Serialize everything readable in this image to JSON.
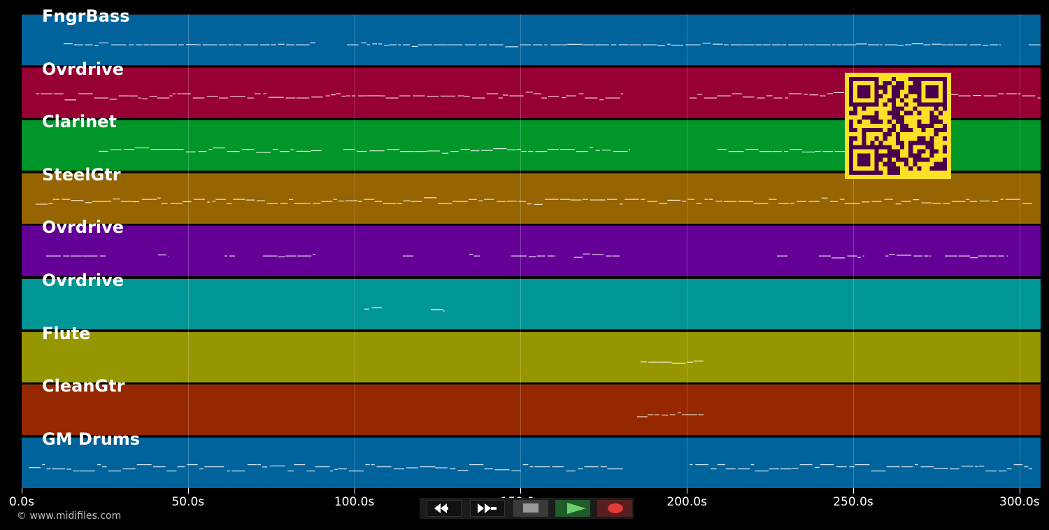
{
  "tracks": [
    {
      "name": "FngrBass",
      "color": "#00639b"
    },
    {
      "name": "Ovrdrive",
      "color": "#960032"
    },
    {
      "name": "Clarinet",
      "color": "#009628"
    },
    {
      "name": "SteelGtr",
      "color": "#966400"
    },
    {
      "name": "Ovrdrive",
      "color": "#640096"
    },
    {
      "name": "Ovrdrive",
      "color": "#009696"
    },
    {
      "name": "Flute",
      "color": "#969600"
    },
    {
      "name": "CleanGtr",
      "color": "#962800"
    },
    {
      "name": "GM Drums",
      "color": "#00639b"
    }
  ],
  "axis": {
    "ticks": [
      "0.0s",
      "50.0s",
      "100.0s",
      "150.0s",
      "200.0s",
      "250.0s",
      "300.0s"
    ]
  },
  "copyright": "© www.midifiles.com",
  "controls": [
    {
      "name": "rewind-button",
      "icon": "rewind-icon"
    },
    {
      "name": "fast-forward-button",
      "icon": "fast-forward-icon"
    },
    {
      "name": "stop-button",
      "icon": "stop-icon"
    },
    {
      "name": "play-button",
      "icon": "play-icon"
    },
    {
      "name": "record-button",
      "icon": "record-icon"
    }
  ],
  "qr_code": {
    "icon": "qr-code-icon",
    "color": "#fce025",
    "dark": "#4b004b"
  }
}
